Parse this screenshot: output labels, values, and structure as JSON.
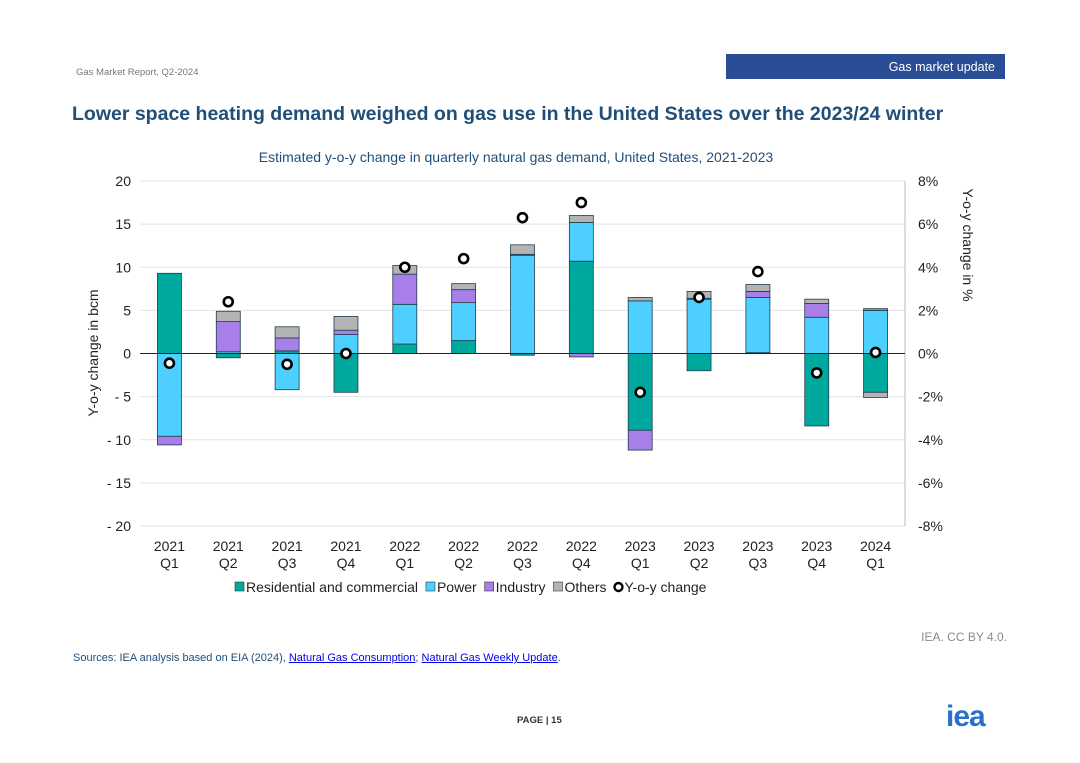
{
  "header": {
    "report": "Gas Market Report, Q2-2024",
    "section": "Gas market update"
  },
  "title": "Lower space heating demand weighed on gas use in the United States over the 2023/24 winter",
  "footer": {
    "sources_prefix": "Sources: IEA analysis based on EIA (2024), ",
    "link1": "Natural Gas Consumption",
    "sep": "; ",
    "link2": "Natural Gas Weekly Update",
    "suffix": ".",
    "credit": "IEA. CC BY 4.0.",
    "page": "PAGE | 15",
    "logo": "iea"
  },
  "chart_data": {
    "type": "bar",
    "title": "Estimated y-o-y change in quarterly natural gas demand, United States, 2021-2023",
    "ylabel": "Y-o-y change in bcm",
    "y2label": "Y-o-y change in %",
    "ylim": [
      -20,
      20
    ],
    "y2lim": [
      -8,
      8
    ],
    "yticks": [
      "20",
      "15",
      "10",
      "5",
      "0",
      "- 5",
      "- 10",
      "- 15",
      "- 20"
    ],
    "y2ticks": [
      "8%",
      "6%",
      "4%",
      "2%",
      "0%",
      "-2%",
      "-4%",
      "-6%",
      "-8%"
    ],
    "categories": [
      [
        "2021",
        "Q1"
      ],
      [
        "2021",
        "Q2"
      ],
      [
        "2021",
        "Q3"
      ],
      [
        "2021",
        "Q4"
      ],
      [
        "2022",
        "Q1"
      ],
      [
        "2022",
        "Q2"
      ],
      [
        "2022",
        "Q3"
      ],
      [
        "2022",
        "Q4"
      ],
      [
        "2023",
        "Q1"
      ],
      [
        "2023",
        "Q2"
      ],
      [
        "2023",
        "Q3"
      ],
      [
        "2023",
        "Q4"
      ],
      [
        "2024",
        "Q1"
      ]
    ],
    "series": [
      {
        "name": "Residential and commercial",
        "color": "#00a99d",
        "values": [
          9.3,
          -0.5,
          0.3,
          -4.5,
          1.1,
          1.5,
          -0.2,
          10.7,
          -8.9,
          -2.0,
          0.1,
          -8.4,
          -4.5
        ]
      },
      {
        "name": "Power",
        "color": "#4dcfff",
        "values": [
          -9.6,
          0.2,
          -4.2,
          2.2,
          4.6,
          4.4,
          11.4,
          4.5,
          6.1,
          6.3,
          6.4,
          4.2,
          5.0
        ]
      },
      {
        "name": "Industry",
        "color": "#a87ee8",
        "values": [
          -1.0,
          3.5,
          1.5,
          0.5,
          3.5,
          1.5,
          0.1,
          -0.4,
          -2.3,
          0.1,
          0.7,
          1.6,
          0.2
        ]
      },
      {
        "name": "Others",
        "color": "#b4b4b4",
        "values": [
          0.0,
          1.2,
          1.3,
          1.6,
          1.0,
          0.7,
          1.1,
          0.8,
          0.4,
          0.8,
          0.8,
          0.5,
          -0.6
        ]
      }
    ],
    "line": {
      "name": "Y-o-y change",
      "values_pct": [
        -0.45,
        2.4,
        -0.5,
        0.0,
        4.0,
        4.4,
        6.3,
        7.0,
        -1.8,
        2.6,
        3.8,
        -0.9,
        0.05
      ]
    },
    "grid": true,
    "legend": "bottom"
  }
}
